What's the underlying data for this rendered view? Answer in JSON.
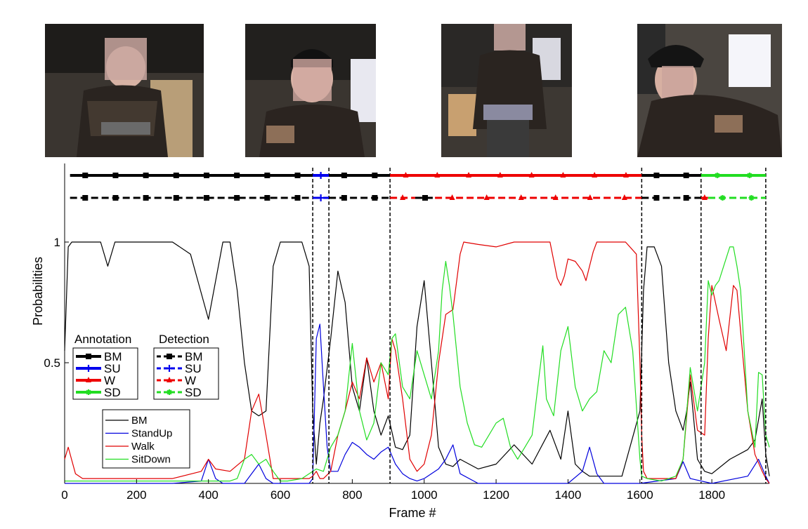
{
  "photos": [
    {
      "name": "frame-photo-1",
      "description_icon": "person-sitting-photo"
    },
    {
      "name": "frame-photo-2",
      "description_icon": "person-standing-up-photo"
    },
    {
      "name": "frame-photo-3",
      "description_icon": "person-walking-photo"
    },
    {
      "name": "frame-photo-4",
      "description_icon": "person-sitting-down-photo"
    }
  ],
  "chart_data": {
    "type": "line",
    "title": "",
    "xlabel": "Frame #",
    "ylabel": "Probabilities",
    "xlim": [
      0,
      1960
    ],
    "ylim": [
      0,
      1
    ],
    "xticks": [
      "0",
      "200",
      "400",
      "600",
      "800",
      "1000",
      "1200",
      "1400",
      "1600",
      "1800"
    ],
    "xtick_values": [
      0,
      200,
      400,
      600,
      800,
      1000,
      1200,
      1400,
      1600,
      1800
    ],
    "yticks": [
      "0.5",
      "1"
    ],
    "ytick_values": [
      0.5,
      1
    ],
    "boundaries": [
      690,
      735,
      905,
      1605,
      1770,
      1950
    ],
    "series": [
      {
        "name": "BM",
        "color": "#000000",
        "x": [
          0,
          10,
          20,
          50,
          100,
          120,
          140,
          200,
          300,
          350,
          400,
          440,
          460,
          480,
          500,
          520,
          540,
          560,
          580,
          600,
          620,
          660,
          680,
          690,
          700,
          710,
          720,
          740,
          760,
          780,
          800,
          820,
          840,
          860,
          880,
          900,
          920,
          940,
          960,
          980,
          1000,
          1020,
          1040,
          1060,
          1080,
          1100,
          1150,
          1200,
          1250,
          1300,
          1350,
          1380,
          1400,
          1420,
          1440,
          1460,
          1500,
          1550,
          1600,
          1610,
          1620,
          1640,
          1660,
          1680,
          1700,
          1720,
          1730,
          1740,
          1760,
          1780,
          1800,
          1850,
          1900,
          1920,
          1940,
          1950,
          1960
        ],
        "y": [
          0.55,
          0.98,
          1,
          1,
          1,
          0.9,
          1,
          1,
          1,
          0.95,
          0.68,
          1,
          1,
          0.8,
          0.5,
          0.3,
          0.28,
          0.3,
          0.9,
          1,
          1,
          1,
          0.9,
          0.3,
          0.08,
          0.25,
          0.35,
          0.6,
          0.88,
          0.75,
          0.4,
          0.3,
          0.52,
          0.3,
          0.2,
          0.28,
          0.15,
          0.14,
          0.2,
          0.65,
          0.84,
          0.5,
          0.15,
          0.08,
          0.07,
          0.1,
          0.06,
          0.08,
          0.16,
          0.08,
          0.22,
          0.1,
          0.3,
          0.08,
          0.05,
          0.03,
          0.03,
          0.03,
          0.3,
          0.8,
          0.98,
          0.98,
          0.9,
          0.5,
          0.3,
          0.22,
          0.3,
          0.42,
          0.1,
          0.05,
          0.04,
          0.1,
          0.14,
          0.18,
          0.35,
          0.12,
          0.03
        ]
      },
      {
        "name": "StandUp",
        "color": "#0000dd",
        "x": [
          0,
          300,
          380,
          400,
          420,
          440,
          500,
          540,
          560,
          580,
          600,
          680,
          690,
          700,
          710,
          720,
          730,
          740,
          760,
          780,
          800,
          820,
          840,
          860,
          880,
          900,
          920,
          940,
          960,
          980,
          1000,
          1040,
          1060,
          1080,
          1100,
          1150,
          1300,
          1400,
          1440,
          1460,
          1480,
          1500,
          1600,
          1700,
          1720,
          1740,
          1800,
          1900,
          1930,
          1950,
          1960
        ],
        "y": [
          0,
          0,
          0.01,
          0.1,
          0.02,
          0,
          0,
          0.08,
          0.02,
          0,
          0,
          0,
          0.02,
          0.6,
          0.66,
          0.4,
          0.15,
          0.05,
          0.05,
          0.12,
          0.17,
          0.15,
          0.12,
          0.1,
          0.13,
          0.15,
          0.08,
          0.04,
          0.02,
          0.01,
          0.02,
          0.06,
          0.1,
          0.16,
          0.04,
          0,
          0,
          0,
          0.05,
          0.15,
          0.04,
          0,
          0,
          0.02,
          0.09,
          0.02,
          0,
          0.03,
          0.1,
          0.03,
          0
        ]
      },
      {
        "name": "Walk",
        "color": "#e00000",
        "x": [
          0,
          10,
          30,
          50,
          100,
          200,
          300,
          380,
          400,
          420,
          460,
          500,
          520,
          540,
          560,
          580,
          600,
          680,
          690,
          700,
          710,
          720,
          740,
          760,
          780,
          800,
          820,
          840,
          860,
          880,
          900,
          910,
          920,
          940,
          960,
          980,
          1000,
          1020,
          1040,
          1050,
          1060,
          1080,
          1100,
          1110,
          1150,
          1200,
          1250,
          1300,
          1350,
          1370,
          1380,
          1390,
          1400,
          1420,
          1440,
          1450,
          1460,
          1470,
          1480,
          1500,
          1560,
          1590,
          1600,
          1605,
          1610,
          1620,
          1660,
          1700,
          1720,
          1740,
          1760,
          1780,
          1790,
          1800,
          1820,
          1840,
          1860,
          1870,
          1880,
          1900,
          1920,
          1940,
          1950,
          1960
        ],
        "y": [
          0.1,
          0.15,
          0.04,
          0.02,
          0.02,
          0.02,
          0.02,
          0.05,
          0.1,
          0.06,
          0.05,
          0.1,
          0.3,
          0.37,
          0.2,
          0.02,
          0.02,
          0.02,
          0.03,
          0.05,
          0.02,
          0.02,
          0.05,
          0.2,
          0.3,
          0.42,
          0.35,
          0.52,
          0.42,
          0.5,
          0.35,
          0.6,
          0.55,
          0.35,
          0.1,
          0.05,
          0.08,
          0.2,
          0.5,
          0.6,
          0.7,
          0.72,
          0.95,
          1,
          0.99,
          0.98,
          1,
          1,
          1,
          0.85,
          0.82,
          0.86,
          0.93,
          0.92,
          0.88,
          0.84,
          0.9,
          0.96,
          1,
          1,
          1,
          0.95,
          0.5,
          0.2,
          0.05,
          0.02,
          0.02,
          0.02,
          0.1,
          0.45,
          0.22,
          0.2,
          0.6,
          0.82,
          0.68,
          0.55,
          0.82,
          0.8,
          0.63,
          0.3,
          0.12,
          0.05,
          0.02,
          0
        ]
      },
      {
        "name": "SitDown",
        "color": "#22dd22",
        "x": [
          0,
          100,
          300,
          460,
          480,
          500,
          520,
          540,
          560,
          580,
          600,
          620,
          660,
          700,
          720,
          740,
          760,
          780,
          800,
          820,
          840,
          860,
          880,
          900,
          910,
          920,
          940,
          960,
          980,
          1000,
          1020,
          1040,
          1050,
          1060,
          1070,
          1080,
          1100,
          1120,
          1140,
          1160,
          1200,
          1220,
          1240,
          1260,
          1300,
          1320,
          1330,
          1340,
          1360,
          1380,
          1400,
          1420,
          1440,
          1460,
          1480,
          1500,
          1520,
          1540,
          1560,
          1580,
          1600,
          1605,
          1620,
          1660,
          1700,
          1720,
          1740,
          1760,
          1780,
          1790,
          1800,
          1810,
          1820,
          1850,
          1860,
          1870,
          1880,
          1900,
          1920,
          1930,
          1940,
          1950,
          1960
        ],
        "y": [
          0.01,
          0.01,
          0.01,
          0.01,
          0.02,
          0.1,
          0.12,
          0.08,
          0.1,
          0.05,
          0.01,
          0.01,
          0.02,
          0.06,
          0.05,
          0.15,
          0.2,
          0.3,
          0.58,
          0.3,
          0.18,
          0.25,
          0.5,
          0.45,
          0.6,
          0.62,
          0.4,
          0.35,
          0.55,
          0.45,
          0.35,
          0.55,
          0.8,
          0.92,
          0.82,
          0.7,
          0.4,
          0.25,
          0.16,
          0.15,
          0.25,
          0.27,
          0.15,
          0.1,
          0.2,
          0.45,
          0.57,
          0.35,
          0.28,
          0.55,
          0.65,
          0.4,
          0.3,
          0.35,
          0.38,
          0.55,
          0.5,
          0.7,
          0.73,
          0.55,
          0.1,
          0.03,
          0.02,
          0.01,
          0.03,
          0.1,
          0.48,
          0.3,
          0.5,
          0.84,
          0.78,
          0.82,
          0.84,
          0.98,
          0.98,
          0.9,
          0.8,
          0.3,
          0.15,
          0.46,
          0.45,
          0.2,
          0.15
        ]
      }
    ],
    "annotation_rows": [
      {
        "name": "annotation",
        "style": "solid",
        "segments": [
          {
            "label": "BM",
            "from": 15,
            "to": 690
          },
          {
            "label": "SU",
            "from": 690,
            "to": 735
          },
          {
            "label": "BM",
            "from": 735,
            "to": 905
          },
          {
            "label": "W",
            "from": 905,
            "to": 1605
          },
          {
            "label": "BM",
            "from": 1605,
            "to": 1770
          },
          {
            "label": "SD",
            "from": 1770,
            "to": 1950
          }
        ]
      },
      {
        "name": "detection",
        "style": "dashed",
        "segments": [
          {
            "label": "BM",
            "from": 15,
            "to": 690
          },
          {
            "label": "SU",
            "from": 690,
            "to": 735
          },
          {
            "label": "BM",
            "from": 735,
            "to": 905
          },
          {
            "label": "W",
            "from": 905,
            "to": 975
          },
          {
            "label": "BM",
            "from": 975,
            "to": 1030
          },
          {
            "label": "W",
            "from": 1030,
            "to": 1605
          },
          {
            "label": "BM",
            "from": 1605,
            "to": 1770
          },
          {
            "label": "W",
            "from": 1770,
            "to": 1790
          },
          {
            "label": "SD",
            "from": 1790,
            "to": 1950
          }
        ]
      }
    ],
    "class_colors": {
      "BM": "#000000",
      "SU": "#0000ee",
      "W": "#ee0000",
      "SD": "#22dd22"
    },
    "class_markers": {
      "BM": "square",
      "SU": "plus",
      "W": "triangle",
      "SD": "star"
    },
    "legend_upper": {
      "annotation_title": "Annotation",
      "detection_title": "Detection",
      "entries": [
        "BM",
        "SU",
        "W",
        "SD"
      ]
    },
    "legend_lower": {
      "entries": [
        "BM",
        "StandUp",
        "Walk",
        "SitDown"
      ]
    }
  }
}
